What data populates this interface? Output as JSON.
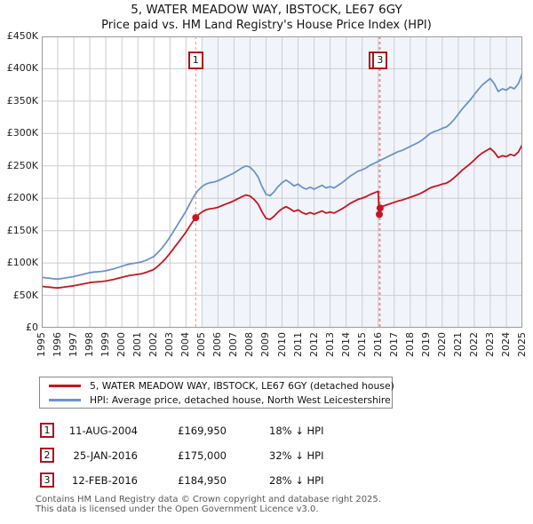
{
  "page": {
    "title": "5, WATER MEADOW WAY, IBSTOCK, LE67 6GY",
    "subtitle": "Price paid vs. HM Land Registry's House Price Index (HPI)"
  },
  "chart_data": {
    "type": "line",
    "title": "5, WATER MEADOW WAY, IBSTOCK, LE67 6GY",
    "subtitle": "Price paid vs. HM Land Registry's House Price Index (HPI)",
    "x_axis": {
      "range": [
        1995,
        2025
      ],
      "ticks": [
        1995,
        1996,
        1997,
        1998,
        1999,
        2000,
        2001,
        2002,
        2003,
        2004,
        2005,
        2006,
        2007,
        2008,
        2009,
        2010,
        2011,
        2012,
        2013,
        2014,
        2015,
        2016,
        2017,
        2018,
        2019,
        2020,
        2021,
        2022,
        2023,
        2024,
        2025
      ]
    },
    "y_axis": {
      "unit": "GBP thousands",
      "range_k": [
        0,
        450
      ],
      "tick_step_k": 50,
      "tick_labels": [
        "£0",
        "£50K",
        "£100K",
        "£150K",
        "£200K",
        "£250K",
        "£300K",
        "£350K",
        "£400K",
        "£450K"
      ]
    },
    "grid": true,
    "grid_color": "#cccccc",
    "owned_shading": {
      "from_year": 2005,
      "to_year": 2025,
      "color": "#f1f5fb"
    },
    "vline_color": "#ee8888",
    "series": [
      {
        "name": "5, WATER MEADOW WAY, IBSTOCK, LE67 6GY (detached house)",
        "color": "#c81422",
        "points_k": [
          [
            1995,
            64
          ],
          [
            1995.25,
            63.1
          ],
          [
            1995.5,
            62.7
          ],
          [
            1995.75,
            61.9
          ],
          [
            1996,
            61.5
          ],
          [
            1996.25,
            62.3
          ],
          [
            1996.5,
            63.1
          ],
          [
            1996.75,
            64
          ],
          [
            1997,
            64.8
          ],
          [
            1997.25,
            66
          ],
          [
            1997.5,
            67.2
          ],
          [
            1997.75,
            68.5
          ],
          [
            1998,
            69.7
          ],
          [
            1998.25,
            70.5
          ],
          [
            1998.5,
            70.9
          ],
          [
            1998.75,
            71.3
          ],
          [
            1999,
            72.2
          ],
          [
            1999.25,
            73.4
          ],
          [
            1999.5,
            74.6
          ],
          [
            1999.75,
            76.3
          ],
          [
            2000,
            77.9
          ],
          [
            2000.25,
            79.5
          ],
          [
            2000.5,
            80.8
          ],
          [
            2000.75,
            81.6
          ],
          [
            2001,
            82.4
          ],
          [
            2001.25,
            83.6
          ],
          [
            2001.5,
            85.3
          ],
          [
            2001.75,
            87.7
          ],
          [
            2002,
            90.2
          ],
          [
            2002.25,
            95.1
          ],
          [
            2002.5,
            100.9
          ],
          [
            2002.75,
            107.4
          ],
          [
            2003,
            114.8
          ],
          [
            2003.25,
            123
          ],
          [
            2003.5,
            131.2
          ],
          [
            2003.75,
            139.4
          ],
          [
            2004,
            147.6
          ],
          [
            2004.25,
            157.4
          ],
          [
            2004.5,
            166.5
          ],
          [
            2004.61,
            169.95
          ],
          [
            2004.75,
            173.8
          ],
          [
            2005,
            178.8
          ],
          [
            2005.25,
            182
          ],
          [
            2005.5,
            183.7
          ],
          [
            2005.75,
            184.5
          ],
          [
            2006,
            186.1
          ],
          [
            2006.25,
            188.6
          ],
          [
            2006.5,
            191.1
          ],
          [
            2006.75,
            193.5
          ],
          [
            2007,
            196
          ],
          [
            2007.25,
            199.3
          ],
          [
            2007.5,
            202.5
          ],
          [
            2007.75,
            205
          ],
          [
            2008,
            203.4
          ],
          [
            2008.25,
            198.4
          ],
          [
            2008.5,
            191.1
          ],
          [
            2008.75,
            178.8
          ],
          [
            2009,
            168.9
          ],
          [
            2009.25,
            167.3
          ],
          [
            2009.5,
            172.2
          ],
          [
            2009.75,
            178.8
          ],
          [
            2010,
            183.7
          ],
          [
            2010.25,
            187
          ],
          [
            2010.5,
            183.7
          ],
          [
            2010.75,
            179.6
          ],
          [
            2011,
            182
          ],
          [
            2011.25,
            177.9
          ],
          [
            2011.5,
            175.5
          ],
          [
            2011.75,
            177.9
          ],
          [
            2012,
            175.5
          ],
          [
            2012.25,
            177.9
          ],
          [
            2012.5,
            180.4
          ],
          [
            2012.75,
            177.1
          ],
          [
            2013,
            178.8
          ],
          [
            2013.25,
            177.1
          ],
          [
            2013.5,
            180.4
          ],
          [
            2013.75,
            183.7
          ],
          [
            2014,
            187.8
          ],
          [
            2014.25,
            191.9
          ],
          [
            2014.5,
            195.2
          ],
          [
            2014.75,
            198.4
          ],
          [
            2015,
            200.1
          ],
          [
            2015.25,
            202.5
          ],
          [
            2015.5,
            205.8
          ],
          [
            2015.75,
            208.3
          ],
          [
            2016,
            210.7
          ],
          [
            2016.07,
            175
          ],
          [
            2016.12,
            184.95
          ],
          [
            2016.25,
            187.2
          ],
          [
            2016.5,
            189.4
          ],
          [
            2016.75,
            191.5
          ],
          [
            2017,
            193.7
          ],
          [
            2017.25,
            195.8
          ],
          [
            2017.5,
            197.3
          ],
          [
            2017.75,
            199.4
          ],
          [
            2018,
            201.6
          ],
          [
            2018.25,
            203.8
          ],
          [
            2018.5,
            205.9
          ],
          [
            2018.75,
            208.8
          ],
          [
            2019,
            212.4
          ],
          [
            2019.25,
            216
          ],
          [
            2019.5,
            218.2
          ],
          [
            2019.75,
            219.6
          ],
          [
            2020,
            221.8
          ],
          [
            2020.25,
            223.2
          ],
          [
            2020.5,
            226.8
          ],
          [
            2020.75,
            231.8
          ],
          [
            2021,
            237.6
          ],
          [
            2021.25,
            243.4
          ],
          [
            2021.5,
            248.4
          ],
          [
            2021.75,
            253.4
          ],
          [
            2022,
            259.2
          ],
          [
            2022.25,
            265
          ],
          [
            2022.5,
            270
          ],
          [
            2022.75,
            273.6
          ],
          [
            2023,
            277.2
          ],
          [
            2023.25,
            271.4
          ],
          [
            2023.5,
            262.8
          ],
          [
            2023.75,
            265.7
          ],
          [
            2024,
            264.2
          ],
          [
            2024.25,
            267.8
          ],
          [
            2024.5,
            265.7
          ],
          [
            2024.75,
            271.4
          ],
          [
            2025,
            283
          ]
        ]
      },
      {
        "name": "HPI: Average price, detached house, North West Leicestershire",
        "color": "#6a94c8",
        "points_k": [
          [
            1995,
            78
          ],
          [
            1995.25,
            77
          ],
          [
            1995.5,
            76.5
          ],
          [
            1995.75,
            75.5
          ],
          [
            1996,
            75
          ],
          [
            1996.25,
            76
          ],
          [
            1996.5,
            77
          ],
          [
            1996.75,
            78
          ],
          [
            1997,
            79
          ],
          [
            1997.25,
            80.5
          ],
          [
            1997.5,
            82
          ],
          [
            1997.75,
            83.5
          ],
          [
            1998,
            85
          ],
          [
            1998.25,
            86
          ],
          [
            1998.5,
            86.5
          ],
          [
            1998.75,
            87
          ],
          [
            1999,
            88
          ],
          [
            1999.25,
            89.5
          ],
          [
            1999.5,
            91
          ],
          [
            1999.75,
            93
          ],
          [
            2000,
            95
          ],
          [
            2000.25,
            97
          ],
          [
            2000.5,
            98.5
          ],
          [
            2000.75,
            99.5
          ],
          [
            2001,
            100.5
          ],
          [
            2001.25,
            102
          ],
          [
            2001.5,
            104
          ],
          [
            2001.75,
            107
          ],
          [
            2002,
            110
          ],
          [
            2002.25,
            116
          ],
          [
            2002.5,
            123
          ],
          [
            2002.75,
            131
          ],
          [
            2003,
            140
          ],
          [
            2003.25,
            150
          ],
          [
            2003.5,
            160
          ],
          [
            2003.75,
            170
          ],
          [
            2004,
            180
          ],
          [
            2004.25,
            192
          ],
          [
            2004.5,
            203
          ],
          [
            2004.61,
            207
          ],
          [
            2004.75,
            212
          ],
          [
            2005,
            218
          ],
          [
            2005.25,
            222
          ],
          [
            2005.5,
            224
          ],
          [
            2005.75,
            225
          ],
          [
            2006,
            227
          ],
          [
            2006.25,
            230
          ],
          [
            2006.5,
            233
          ],
          [
            2006.75,
            236
          ],
          [
            2007,
            239
          ],
          [
            2007.25,
            243
          ],
          [
            2007.5,
            247
          ],
          [
            2007.75,
            250
          ],
          [
            2008,
            248
          ],
          [
            2008.25,
            242
          ],
          [
            2008.5,
            233
          ],
          [
            2008.75,
            218
          ],
          [
            2009,
            206
          ],
          [
            2009.25,
            204
          ],
          [
            2009.5,
            210
          ],
          [
            2009.75,
            218
          ],
          [
            2010,
            224
          ],
          [
            2010.25,
            228
          ],
          [
            2010.5,
            224
          ],
          [
            2010.75,
            219
          ],
          [
            2011,
            222
          ],
          [
            2011.25,
            217
          ],
          [
            2011.5,
            214
          ],
          [
            2011.75,
            217
          ],
          [
            2012,
            214
          ],
          [
            2012.25,
            217
          ],
          [
            2012.5,
            220
          ],
          [
            2012.75,
            216
          ],
          [
            2013,
            218
          ],
          [
            2013.25,
            216
          ],
          [
            2013.5,
            220
          ],
          [
            2013.75,
            224
          ],
          [
            2014,
            229
          ],
          [
            2014.25,
            234
          ],
          [
            2014.5,
            238
          ],
          [
            2014.75,
            242
          ],
          [
            2015,
            244
          ],
          [
            2015.25,
            247
          ],
          [
            2015.5,
            251
          ],
          [
            2015.75,
            254
          ],
          [
            2016,
            257
          ],
          [
            2016.25,
            260
          ],
          [
            2016.5,
            263
          ],
          [
            2016.75,
            266
          ],
          [
            2017,
            269
          ],
          [
            2017.25,
            272
          ],
          [
            2017.5,
            274
          ],
          [
            2017.75,
            277
          ],
          [
            2018,
            280
          ],
          [
            2018.25,
            283
          ],
          [
            2018.5,
            286
          ],
          [
            2018.75,
            290
          ],
          [
            2019,
            295
          ],
          [
            2019.25,
            300
          ],
          [
            2019.5,
            303
          ],
          [
            2019.75,
            305
          ],
          [
            2020,
            308
          ],
          [
            2020.25,
            310
          ],
          [
            2020.5,
            315
          ],
          [
            2020.75,
            322
          ],
          [
            2021,
            330
          ],
          [
            2021.25,
            338
          ],
          [
            2021.5,
            345
          ],
          [
            2021.75,
            352
          ],
          [
            2022,
            360
          ],
          [
            2022.25,
            368
          ],
          [
            2022.5,
            375
          ],
          [
            2022.75,
            380
          ],
          [
            2023,
            385
          ],
          [
            2023.25,
            377
          ],
          [
            2023.5,
            365
          ],
          [
            2023.75,
            369
          ],
          [
            2024,
            367
          ],
          [
            2024.25,
            372
          ],
          [
            2024.5,
            369
          ],
          [
            2024.75,
            377
          ],
          [
            2025,
            393
          ]
        ]
      }
    ],
    "sale_markers": [
      {
        "label": "1",
        "year": 2004.61,
        "price_k": 169.95,
        "pct_below_hpi": 18
      },
      {
        "label": "2",
        "year": 2016.07,
        "price_k": 175,
        "pct_below_hpi": 32
      },
      {
        "label": "3",
        "year": 2016.12,
        "price_k": 184.95,
        "pct_below_hpi": 28
      }
    ]
  },
  "legend": {
    "items": [
      {
        "label": "5, WATER MEADOW WAY, IBSTOCK, LE67 6GY (detached house)",
        "color": "#c81422"
      },
      {
        "label": "HPI: Average price, detached house, North West Leicestershire",
        "color": "#6a94c8"
      }
    ]
  },
  "sales_table": {
    "rows": [
      {
        "num": "1",
        "date": "11-AUG-2004",
        "price": "£169,950",
        "vs_hpi": "18% ↓ HPI"
      },
      {
        "num": "2",
        "date": "25-JAN-2016",
        "price": "£175,000",
        "vs_hpi": "32% ↓ HPI"
      },
      {
        "num": "3",
        "date": "12-FEB-2016",
        "price": "£184,950",
        "vs_hpi": "28% ↓ HPI"
      }
    ]
  },
  "footer": {
    "line1": "Contains HM Land Registry data © Crown copyright and database right 2025.",
    "line2": "This data is licensed under the Open Government Licence v3.0."
  }
}
